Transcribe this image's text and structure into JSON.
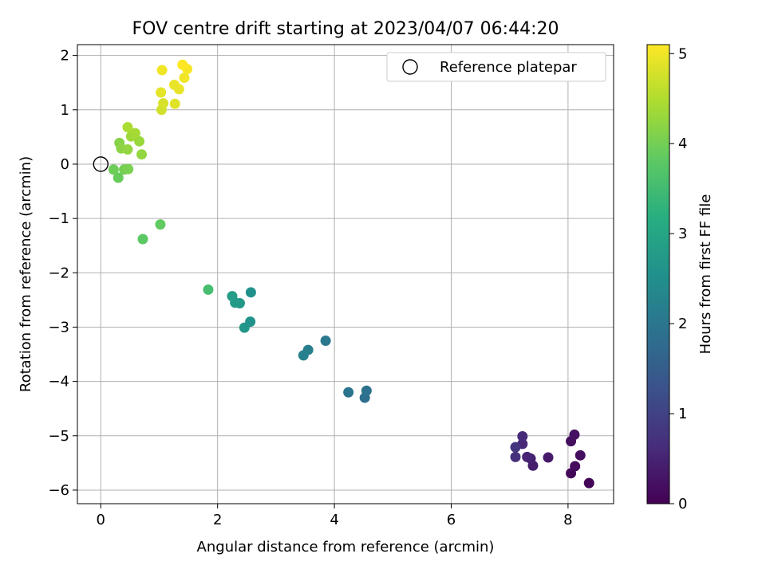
{
  "chart_data": {
    "type": "scatter",
    "title": "FOV centre drift starting at 2023/04/07 06:44:20",
    "xlabel": "Angular distance from reference (arcmin)",
    "ylabel": "Rotation from reference (arcmin)",
    "xlim": [
      -0.4,
      8.78
    ],
    "ylim": [
      -6.25,
      2.2
    ],
    "xticks": [
      0,
      2,
      4,
      6,
      8
    ],
    "xtick_labels": [
      "0",
      "2",
      "4",
      "6",
      "8"
    ],
    "yticks": [
      2,
      1,
      0,
      -1,
      -2,
      -3,
      -4,
      -5,
      -6
    ],
    "ytick_labels": [
      "2",
      "1",
      "0",
      "−1",
      "−2",
      "−3",
      "−4",
      "−5",
      "−6"
    ],
    "grid": true,
    "legend": {
      "position": "top-right",
      "entries": [
        {
          "label": "Reference platepar",
          "marker": "open-circle"
        }
      ]
    },
    "reference_point": {
      "x": 0,
      "y": 0
    },
    "colorbar": {
      "label": "Hours from first FF file",
      "range": [
        0,
        5.1
      ],
      "ticks": [
        0,
        1,
        2,
        3,
        4,
        5
      ],
      "tick_labels": [
        "0",
        "1",
        "2",
        "3",
        "4",
        "5"
      ],
      "colormap": "viridis"
    },
    "points": [
      {
        "x": 8.36,
        "y": -5.87,
        "c": 0.05
      },
      {
        "x": 8.05,
        "y": -5.69,
        "c": 0.1
      },
      {
        "x": 8.12,
        "y": -5.56,
        "c": 0.15
      },
      {
        "x": 8.21,
        "y": -5.36,
        "c": 0.2
      },
      {
        "x": 8.05,
        "y": -5.1,
        "c": 0.2
      },
      {
        "x": 8.11,
        "y": -4.98,
        "c": 0.25
      },
      {
        "x": 7.66,
        "y": -5.4,
        "c": 0.35
      },
      {
        "x": 7.4,
        "y": -5.55,
        "c": 0.4
      },
      {
        "x": 7.36,
        "y": -5.42,
        "c": 0.45
      },
      {
        "x": 7.3,
        "y": -5.39,
        "c": 0.5
      },
      {
        "x": 7.22,
        "y": -5.15,
        "c": 0.55
      },
      {
        "x": 7.22,
        "y": -5.01,
        "c": 0.6
      },
      {
        "x": 7.1,
        "y": -5.39,
        "c": 0.7
      },
      {
        "x": 7.1,
        "y": -5.21,
        "c": 0.75
      },
      {
        "x": 4.52,
        "y": -4.3,
        "c": 1.85
      },
      {
        "x": 4.55,
        "y": -4.17,
        "c": 1.9
      },
      {
        "x": 4.24,
        "y": -4.2,
        "c": 1.95
      },
      {
        "x": 3.85,
        "y": -3.25,
        "c": 2.05
      },
      {
        "x": 3.55,
        "y": -3.42,
        "c": 2.15
      },
      {
        "x": 3.47,
        "y": -3.52,
        "c": 2.2
      },
      {
        "x": 2.57,
        "y": -2.36,
        "c": 2.55
      },
      {
        "x": 2.56,
        "y": -2.9,
        "c": 2.6
      },
      {
        "x": 2.46,
        "y": -3.01,
        "c": 2.65
      },
      {
        "x": 2.38,
        "y": -2.56,
        "c": 2.7
      },
      {
        "x": 2.3,
        "y": -2.55,
        "c": 2.75
      },
      {
        "x": 2.25,
        "y": -2.43,
        "c": 2.8
      },
      {
        "x": 1.84,
        "y": -2.31,
        "c": 3.55
      },
      {
        "x": 0.72,
        "y": -1.38,
        "c": 3.8
      },
      {
        "x": 1.02,
        "y": -1.11,
        "c": 3.85
      },
      {
        "x": 0.3,
        "y": -0.25,
        "c": 3.9
      },
      {
        "x": 0.22,
        "y": -0.1,
        "c": 3.95
      },
      {
        "x": 0.4,
        "y": -0.1,
        "c": 4.0
      },
      {
        "x": 0.47,
        "y": -0.09,
        "c": 4.05
      },
      {
        "x": 0.32,
        "y": 0.39,
        "c": 4.15
      },
      {
        "x": 0.35,
        "y": 0.29,
        "c": 4.2
      },
      {
        "x": 0.46,
        "y": 0.27,
        "c": 4.25
      },
      {
        "x": 0.7,
        "y": 0.18,
        "c": 4.25
      },
      {
        "x": 0.66,
        "y": 0.42,
        "c": 4.3
      },
      {
        "x": 0.52,
        "y": 0.51,
        "c": 4.35
      },
      {
        "x": 0.59,
        "y": 0.57,
        "c": 4.4
      },
      {
        "x": 0.46,
        "y": 0.68,
        "c": 4.45
      },
      {
        "x": 1.04,
        "y": 1.0,
        "c": 4.75
      },
      {
        "x": 1.07,
        "y": 1.12,
        "c": 4.8
      },
      {
        "x": 1.27,
        "y": 1.11,
        "c": 4.85
      },
      {
        "x": 1.03,
        "y": 1.32,
        "c": 4.9
      },
      {
        "x": 1.26,
        "y": 1.46,
        "c": 4.95
      },
      {
        "x": 1.34,
        "y": 1.38,
        "c": 4.95
      },
      {
        "x": 1.43,
        "y": 1.59,
        "c": 5.0
      },
      {
        "x": 1.05,
        "y": 1.73,
        "c": 5.0
      },
      {
        "x": 1.48,
        "y": 1.75,
        "c": 5.05
      },
      {
        "x": 1.4,
        "y": 1.83,
        "c": 5.1
      }
    ]
  }
}
